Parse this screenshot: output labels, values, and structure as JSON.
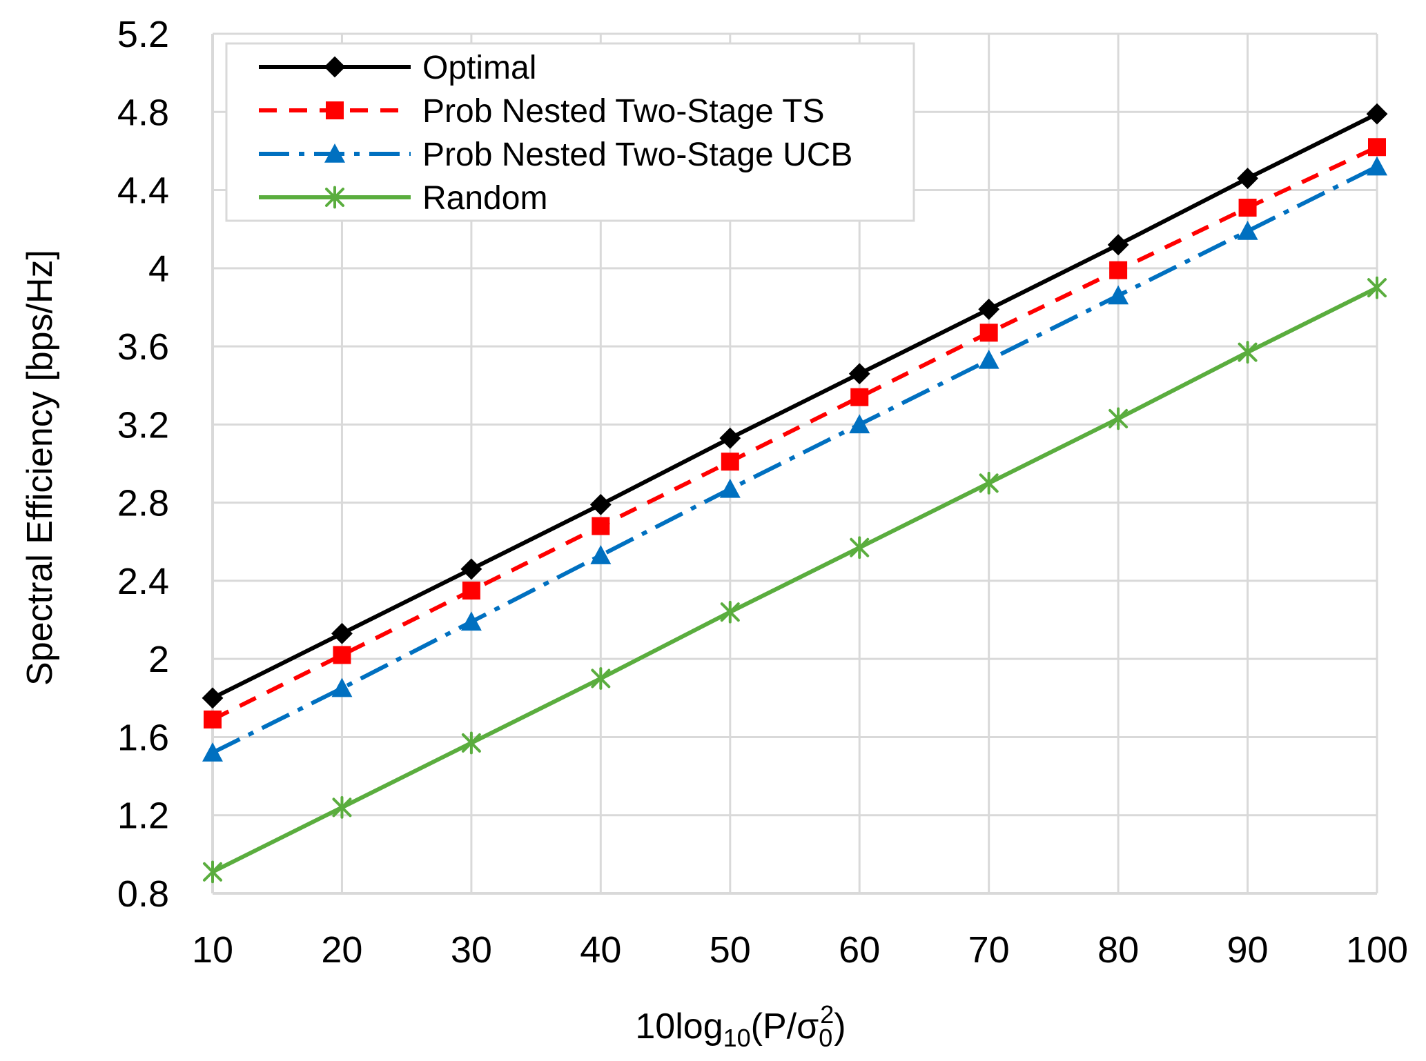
{
  "chart_data": {
    "type": "line",
    "title": "",
    "xlabel": "10log10(P/σ0^2)",
    "xlabel_parts": {
      "base": "10log",
      "base_sub": "10",
      "open": "(P/σ",
      "sigma_sub": "0",
      "sigma_sup": "2",
      "close": ")"
    },
    "ylabel": "Spectral Efficiency [bps/Hz]",
    "x": [
      10,
      20,
      30,
      40,
      50,
      60,
      70,
      80,
      90,
      100
    ],
    "x_tick_labels": [
      "10",
      "20",
      "30",
      "40",
      "50",
      "60",
      "70",
      "80",
      "90",
      "100"
    ],
    "y_tick_labels": [
      "0.8",
      "1.2",
      "1.6",
      "2",
      "2.4",
      "2.8",
      "3.2",
      "3.6",
      "4",
      "4.4",
      "4.8",
      "5.2"
    ],
    "y_ticks": [
      0.8,
      1.2,
      1.6,
      2.0,
      2.4,
      2.8,
      3.2,
      3.6,
      4.0,
      4.4,
      4.8,
      5.2
    ],
    "xlim": [
      10,
      100
    ],
    "ylim": [
      0.8,
      5.2
    ],
    "grid": true,
    "legend_position": "top-left",
    "series": [
      {
        "name": "Optimal",
        "color": "#000000",
        "dash": "solid",
        "marker": "diamond",
        "values": [
          1.8,
          2.13,
          2.46,
          2.79,
          3.13,
          3.46,
          3.79,
          4.12,
          4.46,
          4.79
        ]
      },
      {
        "name": "Prob Nested Two-Stage TS",
        "color": "#ff0000",
        "dash": "dash",
        "marker": "square",
        "values": [
          1.69,
          2.02,
          2.35,
          2.68,
          3.01,
          3.34,
          3.67,
          3.99,
          4.31,
          4.62
        ]
      },
      {
        "name": "Prob Nested Two-Stage UCB",
        "color": "#0070c0",
        "dash": "dashdot",
        "marker": "triangle",
        "values": [
          1.52,
          1.85,
          2.19,
          2.53,
          2.87,
          3.2,
          3.53,
          3.86,
          4.19,
          4.52
        ]
      },
      {
        "name": "Random",
        "color": "#5aad3e",
        "dash": "solid",
        "marker": "asterisk",
        "values": [
          0.91,
          1.24,
          1.57,
          1.9,
          2.24,
          2.57,
          2.9,
          3.23,
          3.57,
          3.9
        ]
      }
    ]
  }
}
